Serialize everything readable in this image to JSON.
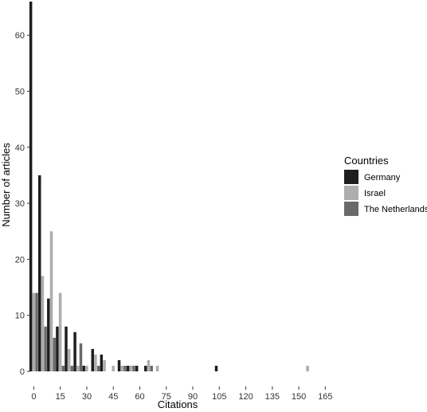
{
  "chart_data": {
    "type": "bar",
    "xlabel": "Citations",
    "ylabel": "Number of articles",
    "x_ticks": [
      0,
      15,
      30,
      45,
      60,
      75,
      90,
      105,
      120,
      135,
      150,
      165
    ],
    "y_ticks": [
      0,
      10,
      20,
      30,
      40,
      50,
      60
    ],
    "xlim": [
      -2,
      168
    ],
    "ylim": [
      0,
      66
    ],
    "grid": false,
    "legend_title": "Countries",
    "legend_position": "right",
    "bin_width": 5,
    "categories": [
      0,
      5,
      10,
      15,
      20,
      25,
      30,
      35,
      40,
      45,
      50,
      55,
      60,
      65,
      70,
      105,
      155
    ],
    "series": [
      {
        "name": "Germany",
        "color": "#1e1e1e",
        "values": [
          66,
          35,
          13,
          8,
          8,
          7,
          1,
          4,
          3,
          0,
          2,
          1,
          1,
          1,
          0,
          1,
          0
        ]
      },
      {
        "name": "Israel",
        "color": "#adadad",
        "values": [
          14,
          17,
          25,
          14,
          4,
          1,
          1,
          3,
          2,
          1,
          1,
          1,
          0,
          2,
          1,
          0,
          1
        ]
      },
      {
        "name": "The Netherlands",
        "color": "#6a6a6a",
        "values": [
          14,
          8,
          6,
          1,
          1,
          5,
          0,
          1,
          0,
          0,
          1,
          1,
          0,
          1,
          0,
          0,
          0
        ]
      }
    ]
  }
}
